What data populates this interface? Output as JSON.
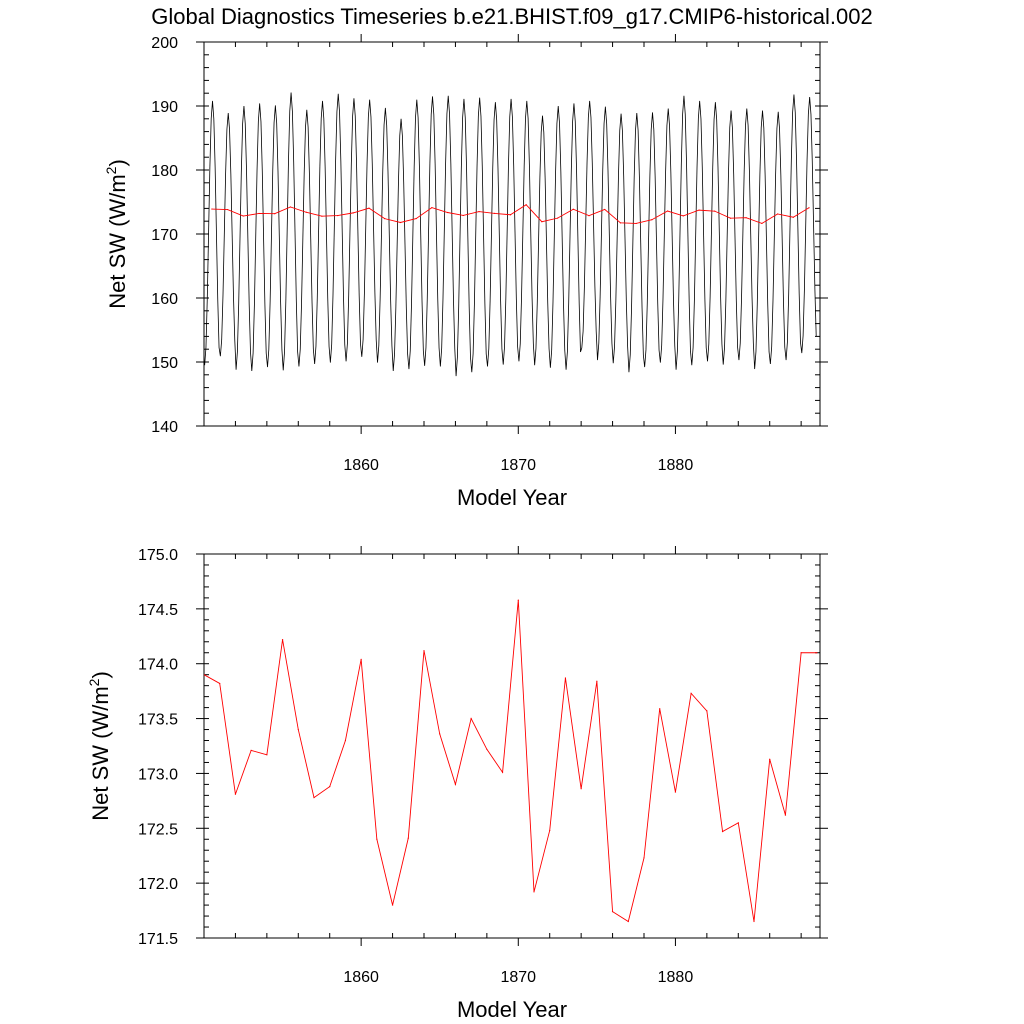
{
  "figure": {
    "title": "Global Diagnostics Timeseries b.e21.BHIST.f09_g17.CMIP6-historical.002"
  },
  "chart_data": [
    {
      "type": "line",
      "xlabel": "Model Year",
      "ylabel_main": "Net SW (W/m",
      "ylabel_sup": "2",
      "ylabel_tail": ")",
      "xlim": [
        1850,
        1889.2
      ],
      "ylim": [
        140,
        200
      ],
      "xticks": [
        1860,
        1870,
        1880
      ],
      "xtick_labels": [
        "1860",
        "1870",
        "1880"
      ],
      "yticks": [
        140,
        150,
        160,
        170,
        180,
        190,
        200
      ],
      "ytick_labels": [
        "140",
        "150",
        "160",
        "170",
        "180",
        "190",
        "200"
      ],
      "grid": false,
      "series": [
        {
          "role": "monthly",
          "color": "#000000",
          "start_year": 1850,
          "months_per_year": 12,
          "annual_min": [
            149.5,
            150.9,
            148.8,
            148.6,
            149.2,
            148.7,
            149.3,
            149.7,
            149.9,
            150.1,
            150.8,
            149.9,
            148.6,
            148.9,
            149.4,
            149.3,
            147.8,
            148.4,
            149.3,
            149.6,
            150.1,
            149.5,
            149.1,
            148.8,
            152.2,
            150.3,
            149.8,
            148.4,
            149.2,
            149.9,
            148.8,
            149.5,
            150.1,
            149.6,
            150.3,
            148.9,
            149.7,
            150.3,
            151.4
          ],
          "annual_max": [
            190.8,
            188.9,
            190.0,
            190.4,
            190.1,
            192.1,
            189.4,
            190.8,
            191.9,
            191.2,
            191.0,
            189.7,
            188.0,
            191.0,
            191.5,
            191.6,
            191.1,
            191.3,
            190.6,
            191.1,
            190.8,
            188.5,
            190.0,
            190.4,
            190.8,
            189.9,
            188.8,
            188.9,
            189.0,
            189.6,
            191.6,
            190.8,
            190.6,
            189.3,
            189.6,
            189.3,
            189.1,
            191.8,
            191.4
          ]
        },
        {
          "role": "annual_mean",
          "color": "#ff0000",
          "x": [
            1850.5,
            1851.5,
            1852.5,
            1853.5,
            1854.5,
            1855.5,
            1856.5,
            1857.5,
            1858.5,
            1859.5,
            1860.5,
            1861.5,
            1862.5,
            1863.5,
            1864.5,
            1865.5,
            1866.5,
            1867.5,
            1868.5,
            1869.5,
            1870.5,
            1871.5,
            1872.5,
            1873.5,
            1874.5,
            1875.5,
            1876.5,
            1877.5,
            1878.5,
            1879.5,
            1880.5,
            1881.5,
            1882.5,
            1883.5,
            1884.5,
            1885.5,
            1886.5,
            1887.5,
            1888.5
          ],
          "y": [
            173.9,
            173.82,
            172.81,
            173.21,
            173.17,
            174.22,
            173.4,
            172.78,
            172.88,
            173.3,
            174.04,
            172.4,
            171.8,
            172.41,
            174.12,
            173.36,
            172.9,
            173.5,
            173.22,
            173.01,
            174.58,
            171.92,
            172.48,
            173.87,
            172.86,
            173.84,
            171.74,
            171.65,
            172.23,
            173.59,
            172.83,
            173.73,
            173.57,
            172.47,
            172.55,
            171.65,
            173.13,
            172.62,
            174.1
          ]
        }
      ]
    },
    {
      "type": "line",
      "xlabel": "Model Year",
      "ylabel_main": "Net SW (W/m",
      "ylabel_sup": "2",
      "ylabel_tail": ")",
      "xlim": [
        1850,
        1889.2
      ],
      "ylim": [
        171.5,
        175.0
      ],
      "xticks": [
        1860,
        1870,
        1880
      ],
      "xtick_labels": [
        "1860",
        "1870",
        "1880"
      ],
      "yticks": [
        171.5,
        172.0,
        172.5,
        173.0,
        173.5,
        174.0,
        174.5,
        175.0
      ],
      "ytick_labels": [
        "171.5",
        "172.0",
        "172.5",
        "173.0",
        "173.5",
        "174.0",
        "174.5",
        "175.0"
      ],
      "grid": false,
      "series": [
        {
          "role": "annual_mean",
          "color": "#ff0000",
          "x": [
            1850,
            1851,
            1852,
            1853,
            1854,
            1855,
            1856,
            1857,
            1858,
            1859,
            1860,
            1861,
            1862,
            1863,
            1864,
            1865,
            1866,
            1867,
            1868,
            1869,
            1870,
            1871,
            1872,
            1873,
            1874,
            1875,
            1876,
            1877,
            1878,
            1879,
            1880,
            1881,
            1882,
            1883,
            1884,
            1885,
            1886,
            1887,
            1888,
            1889
          ],
          "y": [
            173.9,
            173.82,
            172.81,
            173.21,
            173.17,
            174.22,
            173.4,
            172.78,
            172.88,
            173.3,
            174.04,
            172.4,
            171.8,
            172.41,
            174.12,
            173.36,
            172.9,
            173.5,
            173.22,
            173.01,
            174.58,
            171.92,
            172.48,
            173.87,
            172.86,
            173.84,
            171.74,
            171.65,
            172.23,
            173.59,
            172.83,
            173.73,
            173.57,
            172.47,
            172.55,
            171.65,
            173.13,
            172.62,
            174.1,
            174.1
          ]
        }
      ]
    }
  ]
}
